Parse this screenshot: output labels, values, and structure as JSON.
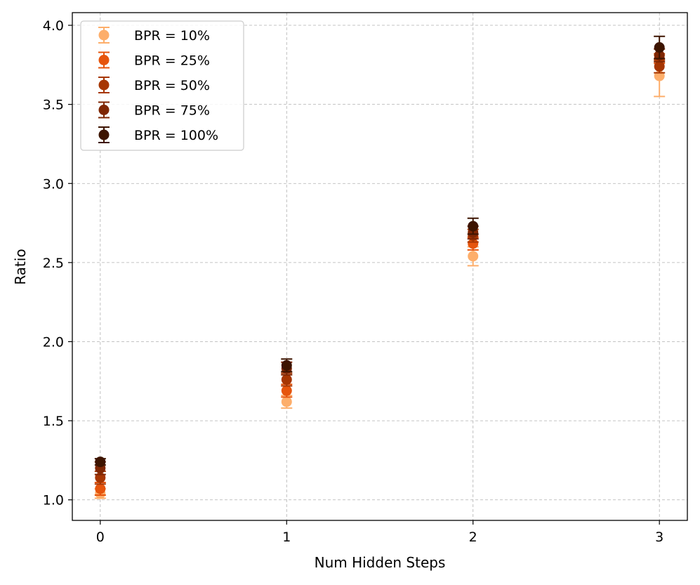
{
  "chart_data": {
    "type": "scatter",
    "title": "",
    "xlabel": "Num Hidden Steps",
    "ylabel": "Ratio",
    "x_ticks": [
      "0",
      "1",
      "2",
      "3"
    ],
    "y_ticks": [
      "1.0",
      "1.5",
      "2.0",
      "2.5",
      "3.0",
      "3.5",
      "4.0"
    ],
    "xlim": [
      -0.15,
      3.15
    ],
    "ylim": [
      0.87,
      4.08
    ],
    "grid": true,
    "legend_position": "top-left",
    "error_bars": true,
    "series": [
      {
        "name": "BPR = 10%",
        "color": "#fdae6b",
        "x": [
          0,
          1,
          2,
          3
        ],
        "y": [
          1.04,
          1.62,
          2.54,
          3.68
        ],
        "yerr": [
          0.03,
          0.04,
          0.06,
          0.13
        ]
      },
      {
        "name": "BPR = 25%",
        "color": "#e6550d",
        "x": [
          0,
          1,
          2,
          3
        ],
        "y": [
          1.07,
          1.69,
          2.62,
          3.79
        ],
        "yerr": [
          0.04,
          0.04,
          0.04,
          0.03
        ]
      },
      {
        "name": "BPR = 50%",
        "color": "#a63603",
        "x": [
          0,
          1,
          2,
          3
        ],
        "y": [
          1.14,
          1.76,
          2.67,
          3.74
        ],
        "yerr": [
          0.04,
          0.04,
          0.04,
          0.04
        ]
      },
      {
        "name": "BPR = 75%",
        "color": "#7f2704",
        "x": [
          0,
          1,
          2,
          3
        ],
        "y": [
          1.2,
          1.83,
          2.69,
          3.81
        ],
        "yerr": [
          0.04,
          0.04,
          0.04,
          0.04
        ]
      },
      {
        "name": "BPR = 100%",
        "color": "#3d1400",
        "x": [
          0,
          1,
          2,
          3
        ],
        "y": [
          1.24,
          1.85,
          2.73,
          3.86
        ],
        "yerr": [
          0.02,
          0.04,
          0.05,
          0.07
        ]
      }
    ]
  }
}
